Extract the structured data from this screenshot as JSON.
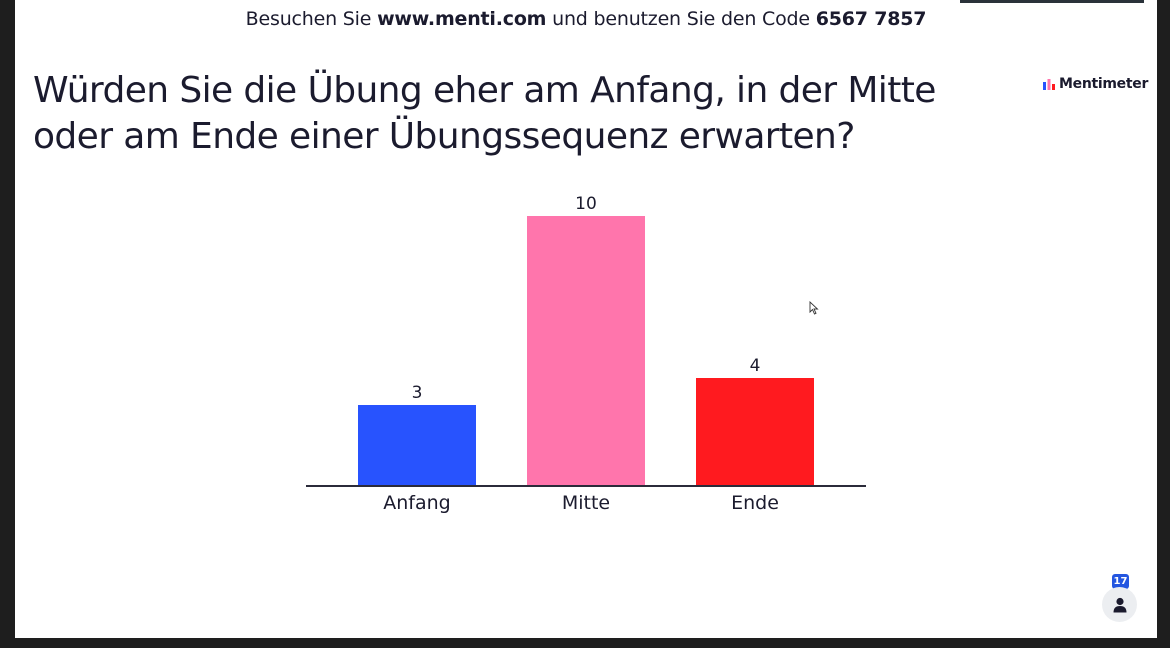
{
  "header": {
    "join_prefix": "Besuchen Sie",
    "join_url": "www.menti.com",
    "join_middle": "und benutzen Sie den Code",
    "join_code": "6567 7857"
  },
  "question": "Würden Sie die Übung eher am Anfang, in der Mitte oder am Ende einer Übungssequenz erwarten?",
  "logo": {
    "text": "Mentimeter",
    "icon": "mentimeter-logo-icon"
  },
  "participants": {
    "count": "17",
    "icon": "person-icon"
  },
  "colors": {
    "anfang": "#2853fe",
    "mitte": "#ff75ac",
    "ende": "#ff1a1f",
    "axis": "#2b2b3a",
    "text": "#1b1b2e"
  },
  "chart_data": {
    "type": "bar",
    "title": "",
    "xlabel": "",
    "ylabel": "",
    "categories": [
      "Anfang",
      "Mitte",
      "Ende"
    ],
    "values": [
      3,
      10,
      4
    ],
    "colors": [
      "#2853fe",
      "#ff75ac",
      "#ff1a1f"
    ],
    "ylim": [
      0,
      10
    ],
    "grid": false,
    "legend": "none"
  }
}
